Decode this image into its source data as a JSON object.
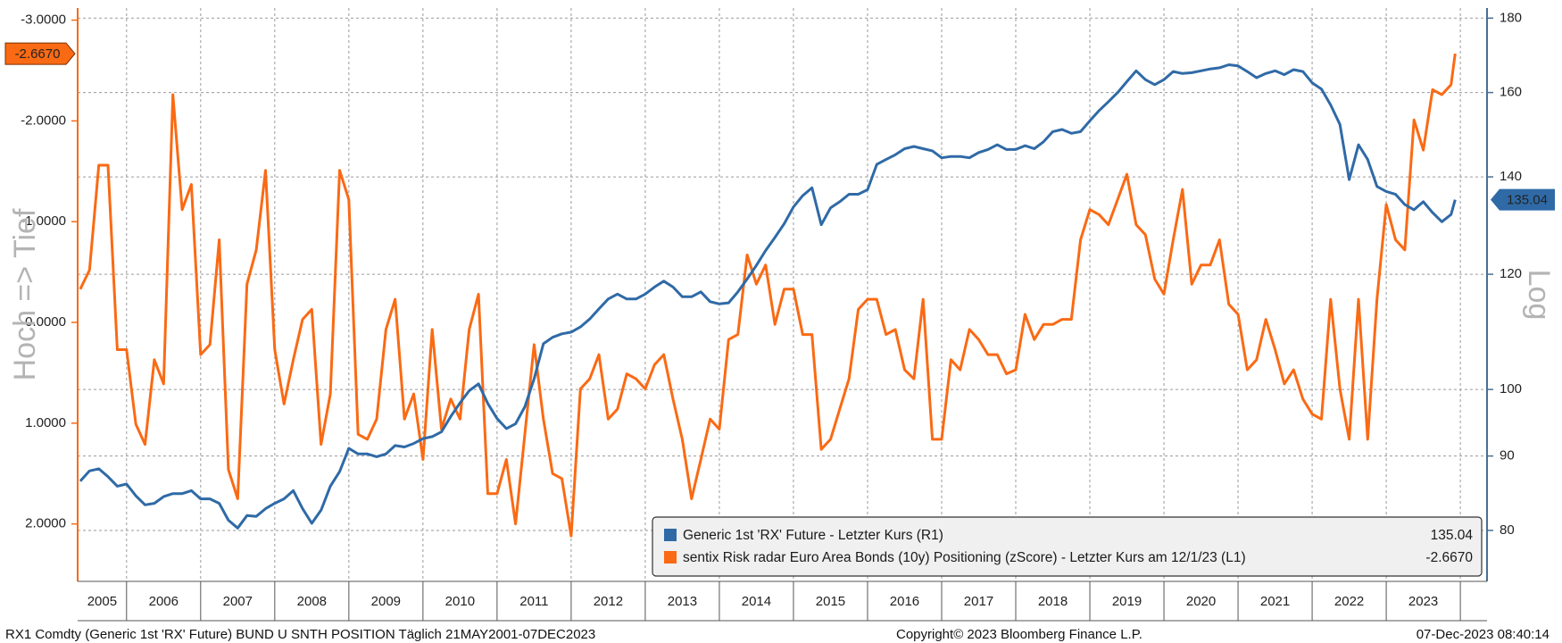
{
  "chart_data": {
    "type": "line",
    "x": [
      2005.375,
      2005.5,
      2005.625,
      2005.75,
      2005.875,
      2006.0,
      2006.125,
      2006.25,
      2006.375,
      2006.5,
      2006.625,
      2006.75,
      2006.875,
      2007.0,
      2007.125,
      2007.25,
      2007.375,
      2007.5,
      2007.625,
      2007.75,
      2007.875,
      2008.0,
      2008.125,
      2008.25,
      2008.375,
      2008.5,
      2008.625,
      2008.75,
      2008.875,
      2009.0,
      2009.125,
      2009.25,
      2009.375,
      2009.5,
      2009.625,
      2009.75,
      2009.875,
      2010.0,
      2010.125,
      2010.25,
      2010.375,
      2010.5,
      2010.625,
      2010.75,
      2010.875,
      2011.0,
      2011.125,
      2011.25,
      2011.375,
      2011.5,
      2011.625,
      2011.75,
      2011.875,
      2012.0,
      2012.125,
      2012.25,
      2012.375,
      2012.5,
      2012.625,
      2012.75,
      2012.875,
      2013.0,
      2013.125,
      2013.25,
      2013.375,
      2013.5,
      2013.625,
      2013.75,
      2013.875,
      2014.0,
      2014.125,
      2014.25,
      2014.375,
      2014.5,
      2014.625,
      2014.75,
      2014.875,
      2015.0,
      2015.125,
      2015.25,
      2015.375,
      2015.5,
      2015.625,
      2015.75,
      2015.875,
      2016.0,
      2016.125,
      2016.25,
      2016.375,
      2016.5,
      2016.625,
      2016.75,
      2016.875,
      2017.0,
      2017.125,
      2017.25,
      2017.375,
      2017.5,
      2017.625,
      2017.75,
      2017.875,
      2018.0,
      2018.125,
      2018.25,
      2018.375,
      2018.5,
      2018.625,
      2018.75,
      2018.875,
      2019.0,
      2019.125,
      2019.25,
      2019.375,
      2019.5,
      2019.625,
      2019.75,
      2019.875,
      2020.0,
      2020.125,
      2020.25,
      2020.375,
      2020.5,
      2020.625,
      2020.75,
      2020.875,
      2021.0,
      2021.125,
      2021.25,
      2021.375,
      2021.5,
      2021.625,
      2021.75,
      2021.875,
      2022.0,
      2022.125,
      2022.25,
      2022.375,
      2022.5,
      2022.625,
      2022.75,
      2022.875,
      2023.0,
      2023.125,
      2023.25,
      2023.375,
      2023.5,
      2023.625,
      2023.75,
      2023.875,
      2023.93
    ],
    "series": [
      {
        "name": "Generic 1st 'RX' Future - Letzter Kurs (R1)",
        "tag": "135.04",
        "color": "#2f6aa6",
        "axis": "y2",
        "values": [
          86.5,
          87.9,
          88.2,
          87.1,
          85.8,
          86.1,
          84.5,
          83.3,
          83.5,
          84.4,
          84.8,
          84.8,
          85.2,
          84.1,
          84.1,
          83.5,
          81.3,
          80.3,
          81.9,
          81.8,
          82.8,
          83.5,
          84.1,
          85.2,
          82.8,
          80.9,
          82.6,
          85.8,
          87.8,
          91.1,
          90.3,
          90.3,
          89.9,
          90.3,
          91.5,
          91.3,
          91.8,
          92.5,
          92.8,
          93.5,
          95.8,
          97.9,
          99.8,
          100.9,
          97.8,
          95.5,
          94.0,
          94.7,
          97.3,
          101.7,
          107.5,
          108.6,
          109.2,
          109.5,
          110.4,
          111.8,
          113.6,
          115.4,
          116.3,
          115.4,
          115.4,
          116.3,
          117.6,
          118.7,
          117.6,
          115.8,
          115.8,
          116.7,
          114.9,
          114.5,
          114.7,
          116.7,
          119.1,
          121.7,
          124.6,
          127.2,
          130.0,
          133.5,
          135.9,
          137.6,
          129.8,
          133.3,
          134.6,
          136.2,
          136.2,
          137.2,
          142.8,
          143.9,
          145.0,
          146.4,
          146.9,
          146.4,
          145.9,
          144.3,
          144.6,
          144.6,
          144.3,
          145.5,
          146.2,
          147.3,
          146.2,
          146.2,
          147.1,
          146.4,
          148.0,
          150.4,
          150.9,
          150.0,
          150.4,
          153.0,
          155.5,
          157.7,
          160.0,
          162.8,
          165.6,
          163.3,
          162.0,
          163.3,
          165.4,
          164.9,
          165.1,
          165.6,
          166.1,
          166.4,
          167.2,
          166.9,
          165.4,
          163.8,
          164.9,
          165.6,
          164.6,
          165.9,
          165.4,
          162.5,
          160.9,
          156.9,
          152.1,
          139.4,
          147.3,
          143.9,
          137.9,
          136.8,
          136.2,
          134.0,
          132.9,
          134.6,
          132.3,
          130.4,
          131.9,
          135.04
        ]
      },
      {
        "name": "sentix Risk radar Euro Area Bonds (10y) Positioning (zScore) - Letzter Kurs am 12/1/23 (L1)",
        "tag": "-2.6670",
        "color": "#fa6a14",
        "axis": "y",
        "values": [
          -0.33,
          -0.52,
          -1.56,
          -1.56,
          0.27,
          0.27,
          1.01,
          1.21,
          0.37,
          0.61,
          -2.26,
          -1.12,
          -1.37,
          0.32,
          0.22,
          -0.82,
          1.46,
          1.75,
          -0.38,
          -0.72,
          -1.51,
          0.27,
          0.81,
          0.37,
          -0.03,
          -0.13,
          1.21,
          0.71,
          -1.51,
          -1.22,
          1.11,
          1.16,
          0.96,
          0.07,
          -0.23,
          0.96,
          0.71,
          1.36,
          0.07,
          1.06,
          0.76,
          0.96,
          0.07,
          -0.28,
          1.7,
          1.7,
          1.36,
          2.0,
          1.11,
          0.22,
          0.96,
          1.5,
          1.55,
          2.12,
          0.66,
          0.56,
          0.32,
          0.96,
          0.86,
          0.51,
          0.56,
          0.66,
          0.42,
          0.32,
          0.76,
          1.16,
          1.75,
          1.36,
          0.96,
          1.06,
          0.17,
          0.12,
          -0.67,
          -0.38,
          -0.57,
          0.02,
          -0.33,
          -0.33,
          0.12,
          0.12,
          1.26,
          1.16,
          0.86,
          0.56,
          -0.13,
          -0.23,
          -0.23,
          0.12,
          0.07,
          0.47,
          0.56,
          -0.23,
          1.16,
          1.16,
          0.37,
          0.47,
          0.07,
          0.17,
          0.32,
          0.32,
          0.51,
          0.47,
          -0.08,
          0.17,
          0.02,
          0.02,
          -0.03,
          -0.03,
          -0.82,
          -1.12,
          -1.07,
          -0.97,
          -1.22,
          -1.47,
          -0.97,
          -0.87,
          -0.43,
          -0.28,
          -0.82,
          -1.32,
          -0.38,
          -0.57,
          -0.57,
          -0.82,
          -0.18,
          -0.08,
          0.47,
          0.37,
          -0.03,
          0.27,
          0.61,
          0.47,
          0.76,
          0.91,
          0.96,
          -0.23,
          0.66,
          1.16,
          -0.23,
          1.16,
          -0.23,
          -1.17,
          -0.82,
          -0.72,
          -2.01,
          -1.71,
          -2.31,
          -2.26,
          -2.36,
          -2.667
        ]
      }
    ],
    "xlim": [
      2005.34,
      2024.36
    ],
    "xgrid": [
      2006,
      2007,
      2008,
      2009,
      2010,
      2011,
      2012,
      2013,
      2014,
      2015,
      2016,
      2017,
      2018,
      2019,
      2020,
      2021,
      2022,
      2023,
      2024
    ],
    "xticks": [
      {
        "value": 2005.5,
        "label": "2005"
      },
      {
        "value": 2006.5,
        "label": "2006"
      },
      {
        "value": 2007.5,
        "label": "2007"
      },
      {
        "value": 2008.5,
        "label": "2008"
      },
      {
        "value": 2009.5,
        "label": "2009"
      },
      {
        "value": 2010.5,
        "label": "2010"
      },
      {
        "value": 2011.5,
        "label": "2011"
      },
      {
        "value": 2012.5,
        "label": "2012"
      },
      {
        "value": 2013.5,
        "label": "2013"
      },
      {
        "value": 2014.5,
        "label": "2014"
      },
      {
        "value": 2015.5,
        "label": "2015"
      },
      {
        "value": 2016.5,
        "label": "2016"
      },
      {
        "value": 2017.5,
        "label": "2017"
      },
      {
        "value": 2018.5,
        "label": "2018"
      },
      {
        "value": 2019.5,
        "label": "2019"
      },
      {
        "value": 2020.5,
        "label": "2020"
      },
      {
        "value": 2021.5,
        "label": "2021"
      },
      {
        "value": 2022.5,
        "label": "2022"
      },
      {
        "value": 2023.5,
        "label": "2023"
      }
    ],
    "ylim": [
      2.57,
      -3.12
    ],
    "yticks": [
      {
        "value": -3,
        "label": "-3.0000"
      },
      {
        "value": -2,
        "label": "-2.0000"
      },
      {
        "value": -1,
        "label": "-1.0000"
      },
      {
        "value": 0,
        "label": "0.0000"
      },
      {
        "value": 1,
        "label": "1.0000"
      },
      {
        "value": 2,
        "label": "2.0000"
      }
    ],
    "ylabel": "Hoch => Tief",
    "y2lim": [
      73.8,
      182.9
    ],
    "y2ticks": [
      80,
      90,
      100,
      120,
      140,
      160,
      180
    ],
    "y2scale": "log",
    "y2label": "Log",
    "grid": true,
    "legend": "bottom-right",
    "footer_left": "RX1 Comdty (Generic 1st 'RX' Future) BUND U SNTH POSITION  Täglich 21MAY2001-07DEC2023",
    "footer_center": "Copyright© 2023 Bloomberg Finance L.P.",
    "footer_right": "07-Dec-2023 08:40:14"
  }
}
